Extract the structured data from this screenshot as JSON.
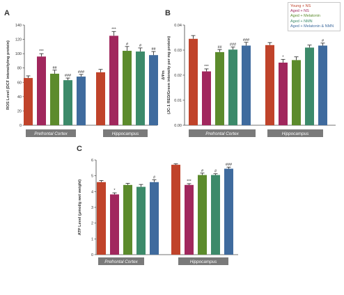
{
  "legend": [
    {
      "label": "Young + NS",
      "color": "#c0432a"
    },
    {
      "label": "Aged + NS",
      "color": "#a1275d"
    },
    {
      "label": "Aged + Melatonin",
      "color": "#5c8b2c"
    },
    {
      "label": "Aged + NMN",
      "color": "#3c8a6a"
    },
    {
      "label": "Aged + Melatonin & NMN",
      "color": "#3f6b9e"
    }
  ],
  "chart_data": [
    {
      "type": "bar",
      "panel_label": "A",
      "ylabel": "ROS Level (DCF intensity/mg protein)",
      "ylim": [
        0,
        140
      ],
      "yticks": [
        "0",
        "20",
        "40",
        "60",
        "80",
        "100",
        "120",
        "140"
      ],
      "categories": [
        "Prefrontal Cortex",
        "Hippocampus"
      ],
      "series": [
        {
          "name": "Young + NS",
          "values": [
            66,
            74
          ],
          "errors": [
            3,
            4
          ],
          "annotations": [
            "",
            ""
          ]
        },
        {
          "name": "Aged + NS",
          "values": [
            96,
            125
          ],
          "errors": [
            4,
            6
          ],
          "annotations": [
            "***",
            "***"
          ]
        },
        {
          "name": "Aged + Melatonin",
          "values": [
            72,
            104
          ],
          "errors": [
            5,
            6
          ],
          "annotations": [
            "##",
            "#"
          ]
        },
        {
          "name": "Aged + NMN",
          "values": [
            63,
            103
          ],
          "errors": [
            3,
            5
          ],
          "annotations": [
            "###",
            "#"
          ]
        },
        {
          "name": "Aged + Melatonin & NMN",
          "values": [
            68,
            98
          ],
          "errors": [
            3,
            5
          ],
          "annotations": [
            "###",
            "##"
          ]
        }
      ]
    },
    {
      "type": "bar",
      "panel_label": "B",
      "ylabel": "ΔΨm\n(JC-1 RED/Green intensity per mg protein)",
      "ylim": [
        0,
        0.04
      ],
      "yticks": [
        "0.00",
        "0.01",
        "0.02",
        "0.03",
        "0.04"
      ],
      "categories": [
        "Prefrontal Cortex",
        "Hippocampus"
      ],
      "series": [
        {
          "name": "Young + NS",
          "values": [
            0.0345,
            0.032
          ],
          "errors": [
            0.0013,
            0.001
          ],
          "annotations": [
            "",
            ""
          ]
        },
        {
          "name": "Aged + NS",
          "values": [
            0.0215,
            0.025
          ],
          "errors": [
            0.001,
            0.0013
          ],
          "annotations": [
            "***",
            "*"
          ]
        },
        {
          "name": "Aged + Melatonin",
          "values": [
            0.0292,
            0.026
          ],
          "errors": [
            0.001,
            0.0013
          ],
          "annotations": [
            "##",
            ""
          ]
        },
        {
          "name": "Aged + NMN",
          "values": [
            0.0302,
            0.031
          ],
          "errors": [
            0.001,
            0.001
          ],
          "annotations": [
            "###",
            ""
          ]
        },
        {
          "name": "Aged + Melatonin & NMN",
          "values": [
            0.0318,
            0.0318
          ],
          "errors": [
            0.0013,
            0.001
          ],
          "annotations": [
            "###",
            "#"
          ]
        }
      ]
    },
    {
      "type": "bar",
      "panel_label": "C",
      "ylabel": "ATP Level (μmol/g wet weight)",
      "ylim": [
        0,
        6
      ],
      "yticks": [
        "0",
        "1",
        "2",
        "3",
        "4",
        "5",
        "6"
      ],
      "categories": [
        "Prefrontal Cortex",
        "Hippocampus"
      ],
      "series": [
        {
          "name": "Young + NS",
          "values": [
            4.6,
            5.7
          ],
          "errors": [
            0.1,
            0.06
          ],
          "annotations": [
            "",
            ""
          ]
        },
        {
          "name": "Aged + NS",
          "values": [
            3.82,
            4.42
          ],
          "errors": [
            0.1,
            0.08
          ],
          "annotations": [
            "*",
            "***"
          ]
        },
        {
          "name": "Aged + Melatonin",
          "values": [
            4.42,
            5.05
          ],
          "errors": [
            0.1,
            0.12
          ],
          "annotations": [
            "",
            "#"
          ]
        },
        {
          "name": "Aged + NMN",
          "values": [
            4.3,
            5.05
          ],
          "errors": [
            0.15,
            0.08
          ],
          "annotations": [
            "",
            "#"
          ]
        },
        {
          "name": "Aged + Melatonin & NMN",
          "values": [
            4.6,
            5.45
          ],
          "errors": [
            0.15,
            0.1
          ],
          "annotations": [
            "#",
            "###"
          ]
        }
      ]
    }
  ]
}
